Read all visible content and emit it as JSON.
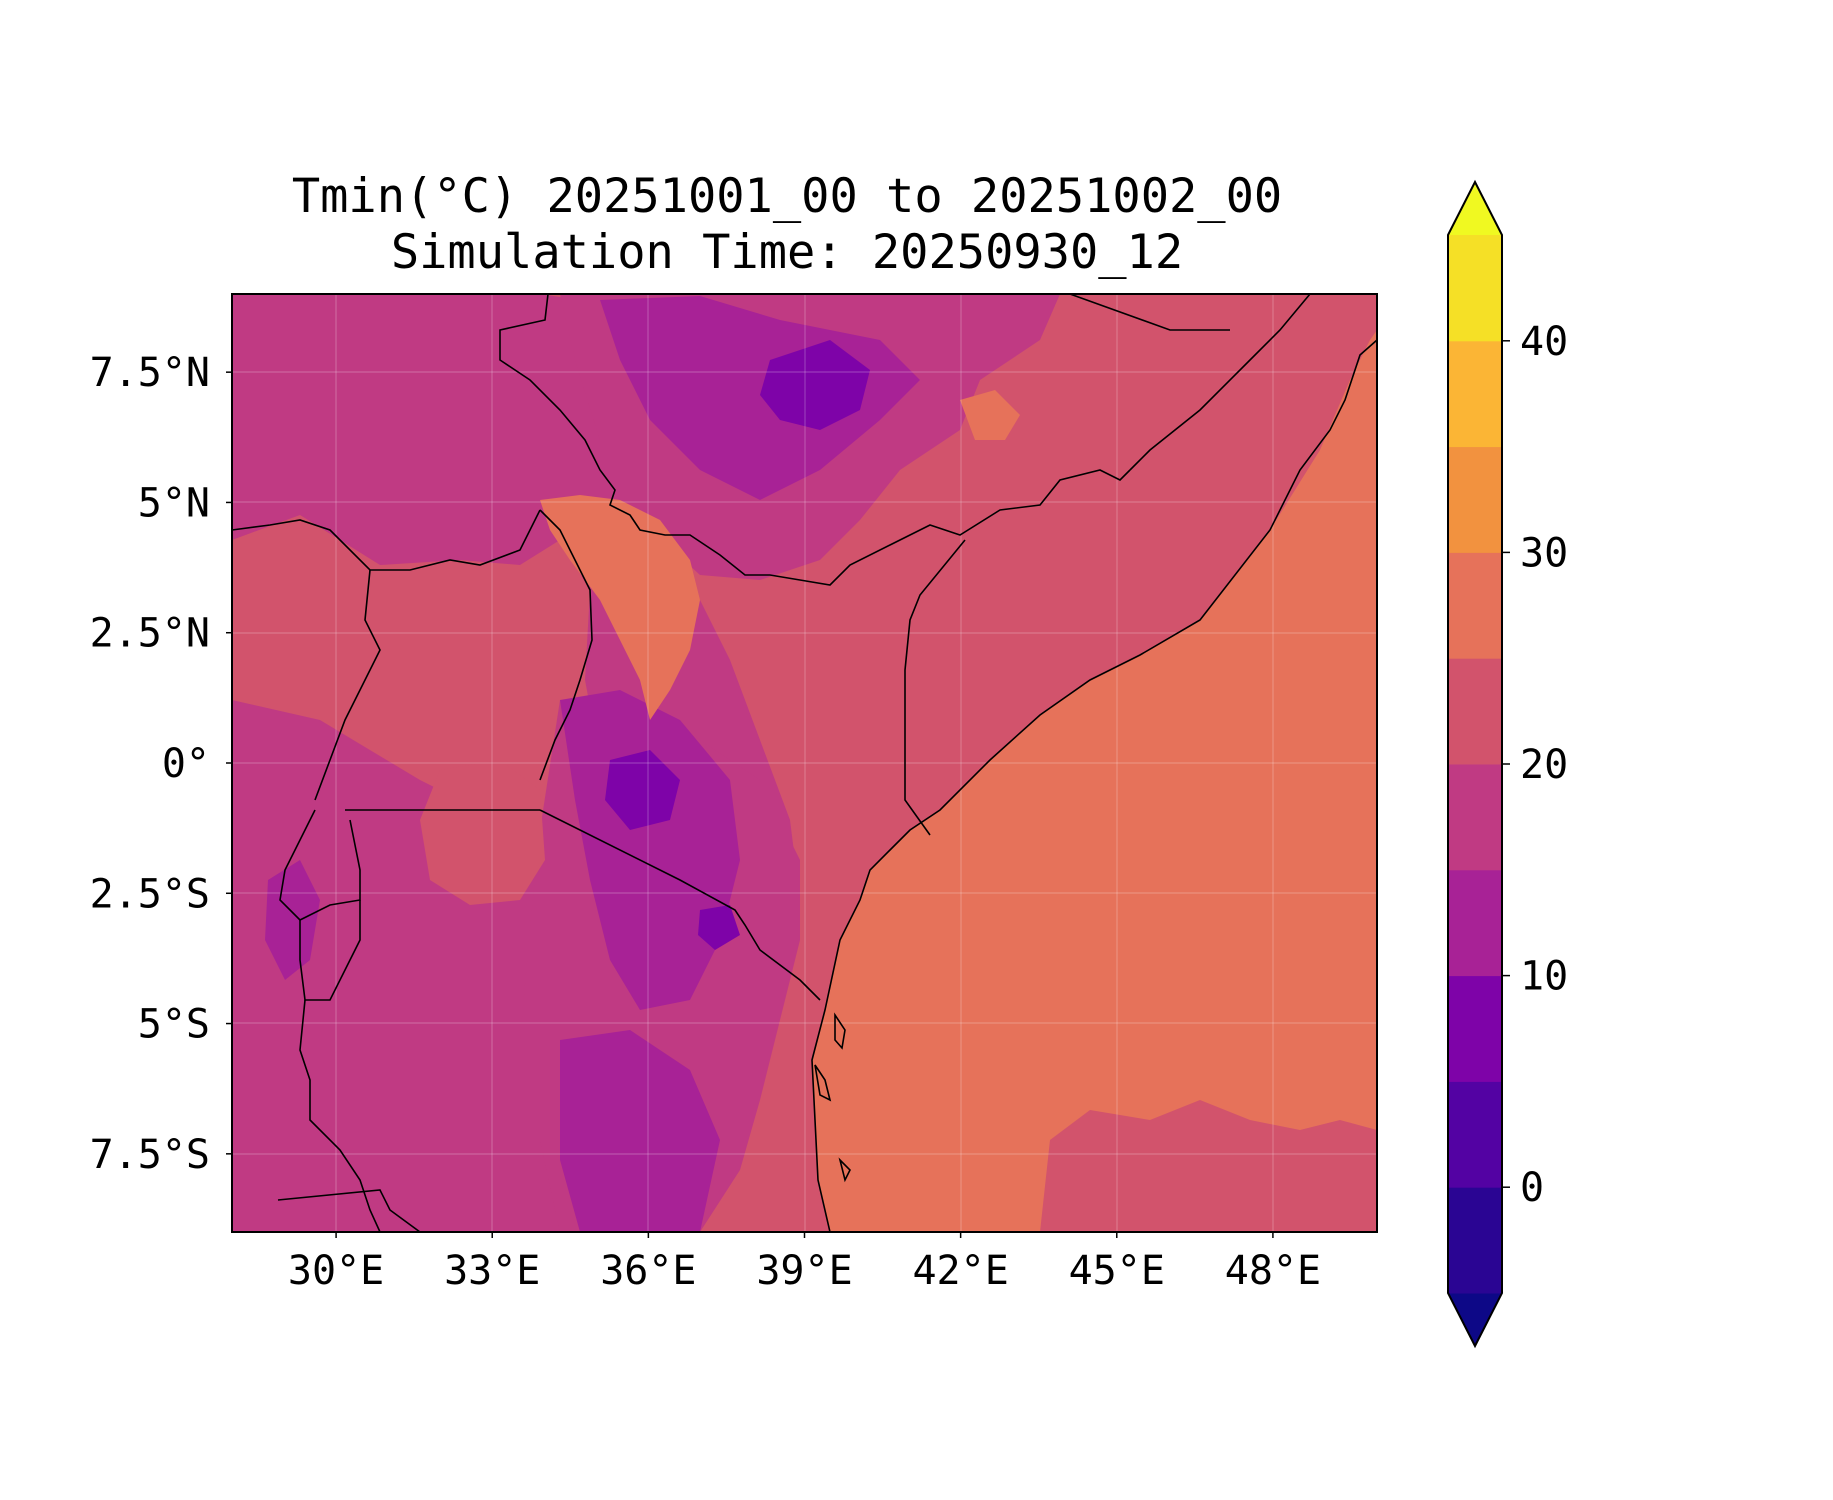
{
  "title": {
    "line1": "Tmin(°C) 20251001_00 to 20251002_00",
    "line2": "Simulation Time: 20250930_12"
  },
  "map": {
    "variable": "Tmin",
    "units": "°C",
    "valid_from": "20251001_00",
    "valid_to": "20251002_00",
    "simulation_time": "20250930_12",
    "lon_range": [
      28.0,
      50.0
    ],
    "lat_range": [
      -9.0,
      9.0
    ],
    "lon_ticks": [
      30,
      33,
      36,
      39,
      42,
      45,
      48
    ],
    "lon_tick_labels": [
      "30°E",
      "33°E",
      "36°E",
      "39°E",
      "42°E",
      "45°E",
      "48°E"
    ],
    "lat_ticks": [
      7.5,
      5,
      2.5,
      0,
      -2.5,
      -5,
      -7.5
    ],
    "lat_tick_labels": [
      "7.5°N",
      "5°N",
      "2.5°N",
      "0°",
      "2.5°S",
      "5°S",
      "7.5°S"
    ],
    "grid": true,
    "colormap": "plasma",
    "ocean_fill": "#e6725a",
    "land_base_fill": "#d2536c"
  },
  "colorbar": {
    "levels": [
      -5,
      0,
      5,
      10,
      15,
      20,
      25,
      30,
      35,
      40,
      45
    ],
    "colors": [
      "#2a0593",
      "#5302a3",
      "#7e03a8",
      "#a82296",
      "#c03a83",
      "#d2536c",
      "#e6725a",
      "#f2923f",
      "#fbb535",
      "#f5e026"
    ],
    "under_color": "#0d0887",
    "over_color": "#f0f921",
    "ticks": [
      0,
      10,
      20,
      30,
      40
    ],
    "tick_labels": [
      "0",
      "10",
      "20",
      "30",
      "40"
    ],
    "extend": "both",
    "orientation": "vertical"
  }
}
